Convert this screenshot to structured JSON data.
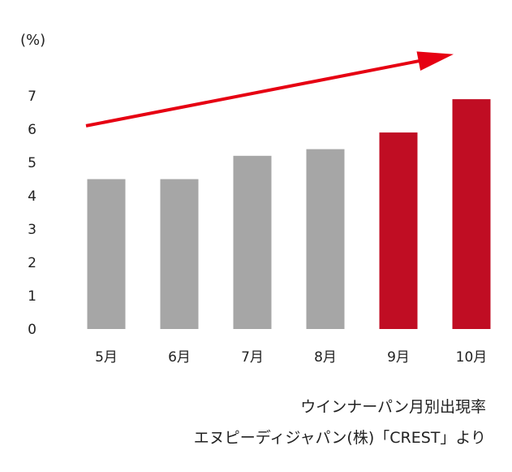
{
  "chart_data": {
    "type": "bar",
    "unit_label": "(%)",
    "categories": [
      "5月",
      "6月",
      "7月",
      "8月",
      "9月",
      "10月"
    ],
    "values": [
      4.5,
      4.5,
      5.2,
      5.4,
      5.9,
      6.9
    ],
    "highlight": [
      false,
      false,
      false,
      false,
      true,
      true
    ],
    "colors": {
      "default": "#a6a6a6",
      "highlight": "#c00d23",
      "trend_arrow": "#e60012"
    },
    "ylim": [
      0,
      7
    ],
    "yticks": [
      "0",
      "1",
      "2",
      "3",
      "4",
      "5",
      "6",
      "7"
    ],
    "trend_arrow": {
      "from": {
        "category": "5月",
        "value": 6.1
      },
      "to": {
        "category": "10月",
        "value": 8.2
      }
    },
    "grid": false,
    "legend": "none"
  },
  "source": {
    "line1": "ウインナーパン月別出現率",
    "line2": "エヌピーディジャパン(株)「CREST」より"
  }
}
